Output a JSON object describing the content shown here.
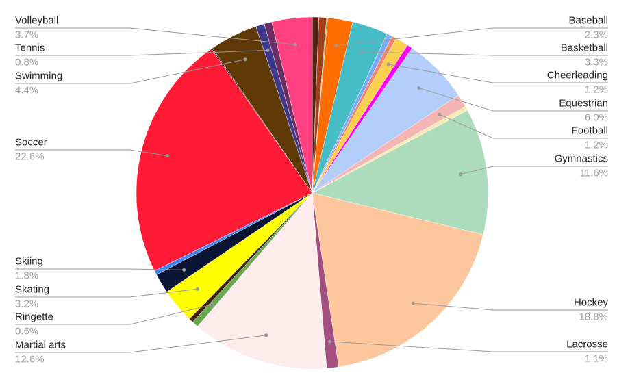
{
  "chart_data": {
    "type": "pie",
    "categories": [
      null,
      null,
      null,
      "Baseball",
      "Basketball",
      null,
      null,
      "Cheerleading",
      null,
      "Equestrian",
      "Football",
      null,
      "Gymnastics",
      "Hockey",
      "Lacrosse",
      "Martial arts",
      "Ringette",
      null,
      "Skating",
      "Skiing",
      null,
      "Soccer",
      null,
      "Swimming",
      "Tennis",
      null,
      "Volleyball"
    ],
    "values": [
      0.6,
      0.7,
      0.1,
      2.3,
      3.3,
      0.5,
      0.4,
      1.2,
      0.5,
      6.0,
      1.2,
      0.4,
      11.6,
      18.8,
      1.1,
      12.6,
      0.6,
      0.4,
      3.2,
      1.8,
      0.4,
      22.6,
      0.1,
      4.4,
      0.8,
      0.7,
      3.7
    ],
    "value_labels": [
      null,
      null,
      null,
      "2.3%",
      "3.3%",
      null,
      null,
      "1.2%",
      null,
      "6.0%",
      "1.2%",
      null,
      "11.6%",
      "18.8%",
      "1.1%",
      "12.6%",
      "0.6%",
      null,
      "3.2%",
      "1.8%",
      null,
      "22.6%",
      null,
      "4.4%",
      "0.8%",
      null,
      "3.7%"
    ],
    "colors": [
      "#5b1f0f",
      "#a0401c",
      "#6aa84f",
      "#ff6d01",
      "#46bdc6",
      "#7baaf7",
      "#f4846a",
      "#fcd04f",
      "#ff00ff",
      "#b3cefb",
      "#f4b5b5",
      "#fce8b2",
      "#acdcbb",
      "#fdc69c",
      "#a34f7f",
      "#fdeceb",
      "#6aa84f",
      "#3e1f0e",
      "#ffff00",
      "#0a1533",
      "#4285f4",
      "#ff1a35",
      "#111111",
      "#5f3a07",
      "#3d3a8c",
      "#6b2d63",
      "#ff4081"
    ]
  }
}
